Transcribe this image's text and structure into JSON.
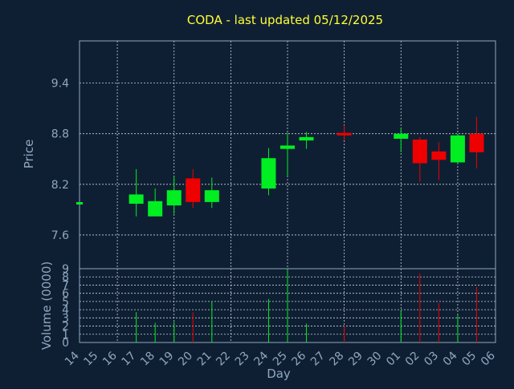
{
  "chart_data": {
    "type": "candlestick",
    "title": "CODA - last updated 05/12/2025",
    "xlabel": "Day",
    "ylabel_price": "Price",
    "ylabel_volume": "Volume (0000)",
    "price_ylim": [
      7.2,
      9.9
    ],
    "price_ticks": [
      "9.4",
      "8.8",
      "8.2",
      "7.6"
    ],
    "volume_ylim": [
      0,
      9
    ],
    "volume_ticks": [
      "0",
      "1",
      "2",
      "3",
      "4",
      "5",
      "6",
      "7",
      "8",
      "9"
    ],
    "x_ticks": [
      "14",
      "15",
      "16",
      "17",
      "18",
      "19",
      "20",
      "21",
      "22",
      "23",
      "24",
      "25",
      "26",
      "27",
      "28",
      "29",
      "30",
      "01",
      "02",
      "03",
      "04",
      "05",
      "06"
    ],
    "candles": [
      {
        "day": "14",
        "open": 7.98,
        "close": 7.98,
        "high": 7.98,
        "low": 7.98,
        "volume": 0.1
      },
      {
        "day": "17",
        "open": 7.97,
        "close": 8.08,
        "high": 8.38,
        "low": 7.82,
        "volume": 3.7
      },
      {
        "day": "18",
        "open": 7.82,
        "close": 8.0,
        "high": 8.15,
        "low": 7.82,
        "volume": 2.4
      },
      {
        "day": "19",
        "open": 7.95,
        "close": 8.13,
        "high": 8.3,
        "low": 7.85,
        "volume": 2.5
      },
      {
        "day": "20",
        "open": 8.27,
        "close": 7.99,
        "high": 8.38,
        "low": 7.92,
        "volume": 3.7
      },
      {
        "day": "21",
        "open": 7.99,
        "close": 8.13,
        "high": 8.28,
        "low": 7.92,
        "volume": 5.0
      },
      {
        "day": "24",
        "open": 8.15,
        "close": 8.51,
        "high": 8.63,
        "low": 8.07,
        "volume": 5.3
      },
      {
        "day": "25",
        "open": 8.62,
        "close": 8.66,
        "high": 8.81,
        "low": 8.3,
        "volume": 8.9
      },
      {
        "day": "26",
        "open": 8.72,
        "close": 8.76,
        "high": 8.82,
        "low": 8.62,
        "volume": 2.3
      },
      {
        "day": "28",
        "open": 8.81,
        "close": 8.78,
        "high": 8.9,
        "low": 8.72,
        "volume": 2.0
      },
      {
        "day": "01",
        "open": 8.74,
        "close": 8.8,
        "high": 8.87,
        "low": 8.58,
        "volume": 3.9
      },
      {
        "day": "02",
        "open": 8.73,
        "close": 8.45,
        "high": 8.76,
        "low": 8.23,
        "volume": 8.4
      },
      {
        "day": "03",
        "open": 8.59,
        "close": 8.49,
        "high": 8.7,
        "low": 8.25,
        "volume": 4.8
      },
      {
        "day": "04",
        "open": 8.46,
        "close": 8.78,
        "high": 8.8,
        "low": 8.44,
        "volume": 3.3
      },
      {
        "day": "05",
        "open": 8.8,
        "close": 8.58,
        "high": 9.0,
        "low": 8.39,
        "volume": 6.8
      }
    ],
    "grid": true,
    "colors": {
      "up": "#00ee22",
      "down": "#ee0000",
      "background": "#0f1f33",
      "axis": "#8fa7bf",
      "title": "#ffff33",
      "grid": "#c8d2dc"
    }
  }
}
